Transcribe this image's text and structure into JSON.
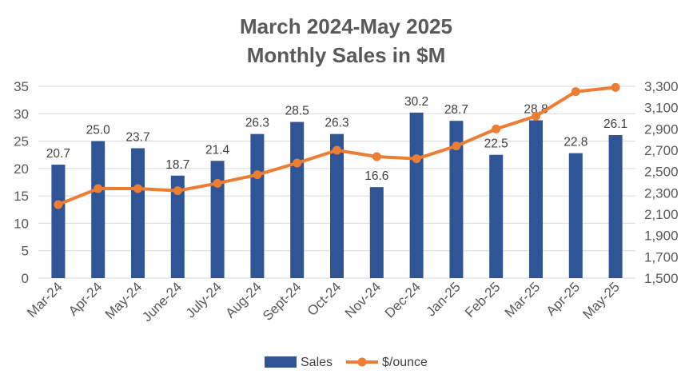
{
  "chart_data": {
    "type": "bar",
    "title_lines": [
      "March 2024-May 2025",
      "Monthly Sales in $M"
    ],
    "categories": [
      "Mar-24",
      "Apr-24",
      "May-24",
      "June-24",
      "July-24",
      "Aug-24",
      "Sept-24",
      "Oct-24",
      "Nov-24",
      "Dec-24",
      "Jan-25",
      "Feb-25",
      "Mar-25",
      "Apr-25",
      "May-25"
    ],
    "series": [
      {
        "name": "Sales",
        "type": "bar",
        "axis": "left",
        "color": "#2F5597",
        "values": [
          20.7,
          25.0,
          23.7,
          18.7,
          21.4,
          26.3,
          28.5,
          26.3,
          16.6,
          30.2,
          28.7,
          22.5,
          28.8,
          22.8,
          26.1
        ],
        "labels": [
          "20.7",
          "25.0",
          "23.7",
          "18.7",
          "21.4",
          "26.3",
          "28.5",
          "26.3",
          "16.6",
          "30.2",
          "28.7",
          "22.5",
          "28.8",
          "22.8",
          "26.1"
        ]
      },
      {
        "name": "$/ounce",
        "type": "line",
        "axis": "right",
        "color": "#ED7D31",
        "values": [
          2190,
          2340,
          2340,
          2320,
          2390,
          2470,
          2580,
          2700,
          2640,
          2620,
          2740,
          2900,
          3020,
          3250,
          3290
        ]
      }
    ],
    "y_left": {
      "min": 0,
      "max": 35,
      "ticks": [
        "0",
        "5",
        "10",
        "15",
        "20",
        "25",
        "30",
        "35"
      ]
    },
    "y_right": {
      "min": 1500,
      "max": 3300,
      "ticks": [
        "1,500",
        "1,700",
        "1,900",
        "2,100",
        "2,300",
        "2,500",
        "2,700",
        "2,900",
        "3,100",
        "3,300"
      ]
    },
    "gridlines": true,
    "legend": {
      "position": "bottom",
      "items": [
        "Sales",
        "$/ounce"
      ]
    }
  }
}
